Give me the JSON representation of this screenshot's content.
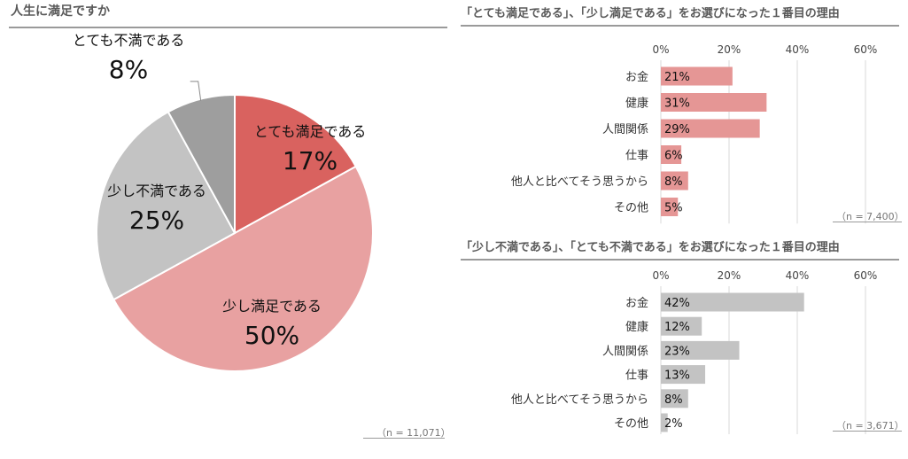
{
  "colors": {
    "satisfied_very": "#d9625f",
    "satisfied_little": "#e8a1a1",
    "dissatisfied_little": "#c3c3c3",
    "dissatisfied_very": "#9e9e9e",
    "bar_pink": "#e59695",
    "bar_gray": "#c3c3c3",
    "grid": "#d9d9d9",
    "title_rule": "#9a9a9a"
  },
  "left": {
    "title": "人生に満足ですか",
    "n_note": "（n = 11,071）"
  },
  "right_top": {
    "title": "「とても満足である」、「少し満足である」をお選びになった１番目の理由",
    "n_note": "（n = 7,400）"
  },
  "right_bottom": {
    "title": "「少し不満である」、「とても不満である」をお選びになった１番目の理由",
    "n_note": "（n = 3,671）"
  },
  "chart_data": [
    {
      "type": "pie",
      "title": "人生に満足ですか",
      "slices": [
        {
          "label": "とても満足である",
          "value": 17,
          "value_label": "17%"
        },
        {
          "label": "少し満足である",
          "value": 50,
          "value_label": "50%"
        },
        {
          "label": "少し不満である",
          "value": 25,
          "value_label": "25%"
        },
        {
          "label": "とても不満である",
          "value": 8,
          "value_label": "8%"
        }
      ],
      "note": "（n = 11,071）"
    },
    {
      "type": "bar",
      "orientation": "horizontal",
      "title": "「とても満足である」、「少し満足である」をお選びになった１番目の理由",
      "categories": [
        "お金",
        "健康",
        "人間関係",
        "仕事",
        "他人と比べてそう思うから",
        "その他"
      ],
      "values": [
        21,
        31,
        29,
        6,
        8,
        5
      ],
      "value_labels": [
        "21%",
        "31%",
        "29%",
        "6%",
        "8%",
        "5%"
      ],
      "xlim": [
        0,
        60
      ],
      "xticks": [
        "0%",
        "20%",
        "40%",
        "60%"
      ],
      "grid": true,
      "note": "（n = 7,400）"
    },
    {
      "type": "bar",
      "orientation": "horizontal",
      "title": "「少し不満である」、「とても不満である」をお選びになった１番目の理由",
      "categories": [
        "お金",
        "健康",
        "人間関係",
        "仕事",
        "他人と比べてそう思うから",
        "その他"
      ],
      "values": [
        42,
        12,
        23,
        13,
        8,
        2
      ],
      "value_labels": [
        "42%",
        "12%",
        "23%",
        "13%",
        "8%",
        "2%"
      ],
      "xlim": [
        0,
        60
      ],
      "xticks": [
        "0%",
        "20%",
        "40%",
        "60%"
      ],
      "grid": true,
      "note": "（n = 3,671）"
    }
  ]
}
